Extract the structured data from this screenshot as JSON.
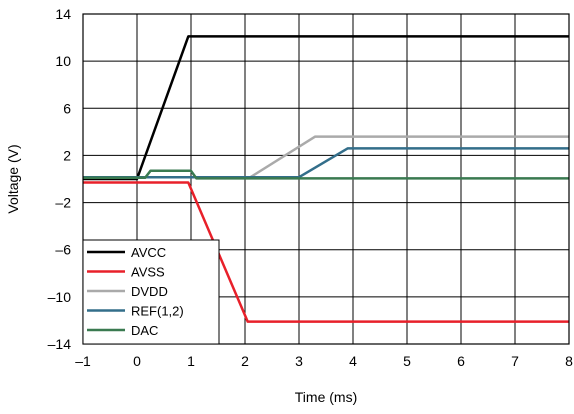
{
  "chart_data": {
    "type": "line",
    "title": "",
    "xlabel": "Time (ms)",
    "ylabel": "Voltage (V)",
    "xlim": [
      -1,
      8
    ],
    "ylim": [
      -14,
      14
    ],
    "x_ticks": [
      -1,
      0,
      1,
      2,
      3,
      4,
      5,
      6,
      7,
      8
    ],
    "x_tick_labels": [
      "–1",
      "0",
      "1",
      "2",
      "3",
      "4",
      "5",
      "6",
      "7",
      "8"
    ],
    "y_ticks": [
      -14,
      -10,
      -6,
      -2,
      2,
      6,
      10,
      14
    ],
    "y_tick_labels": [
      "–14",
      "–10",
      "–6",
      "–2",
      "2",
      "6",
      "10",
      "14"
    ],
    "grid": true,
    "legend_position": "bottom-left",
    "series": [
      {
        "name": "AVCC",
        "color": "#000000",
        "points": [
          [
            -1,
            0
          ],
          [
            0,
            0
          ],
          [
            0.95,
            12.1
          ],
          [
            8,
            12.1
          ]
        ]
      },
      {
        "name": "AVSS",
        "color": "#e8202a",
        "points": [
          [
            -1,
            -0.3
          ],
          [
            0.95,
            -0.3
          ],
          [
            2.05,
            -12.1
          ],
          [
            8,
            -12.1
          ]
        ]
      },
      {
        "name": "DVDD",
        "color": "#aaaaaa",
        "points": [
          [
            -1,
            0.15
          ],
          [
            2.1,
            0.15
          ],
          [
            3.3,
            3.6
          ],
          [
            8,
            3.6
          ]
        ]
      },
      {
        "name": "REF(1,2)",
        "color": "#336e8a",
        "points": [
          [
            -1,
            0.15
          ],
          [
            3.0,
            0.15
          ],
          [
            3.9,
            2.6
          ],
          [
            8,
            2.6
          ]
        ]
      },
      {
        "name": "DAC",
        "color": "#3a7a50",
        "points": [
          [
            -1,
            0.1
          ],
          [
            0.15,
            0.1
          ],
          [
            0.25,
            0.7
          ],
          [
            1.0,
            0.7
          ],
          [
            1.1,
            0.05
          ],
          [
            8,
            0.05
          ]
        ]
      }
    ]
  }
}
